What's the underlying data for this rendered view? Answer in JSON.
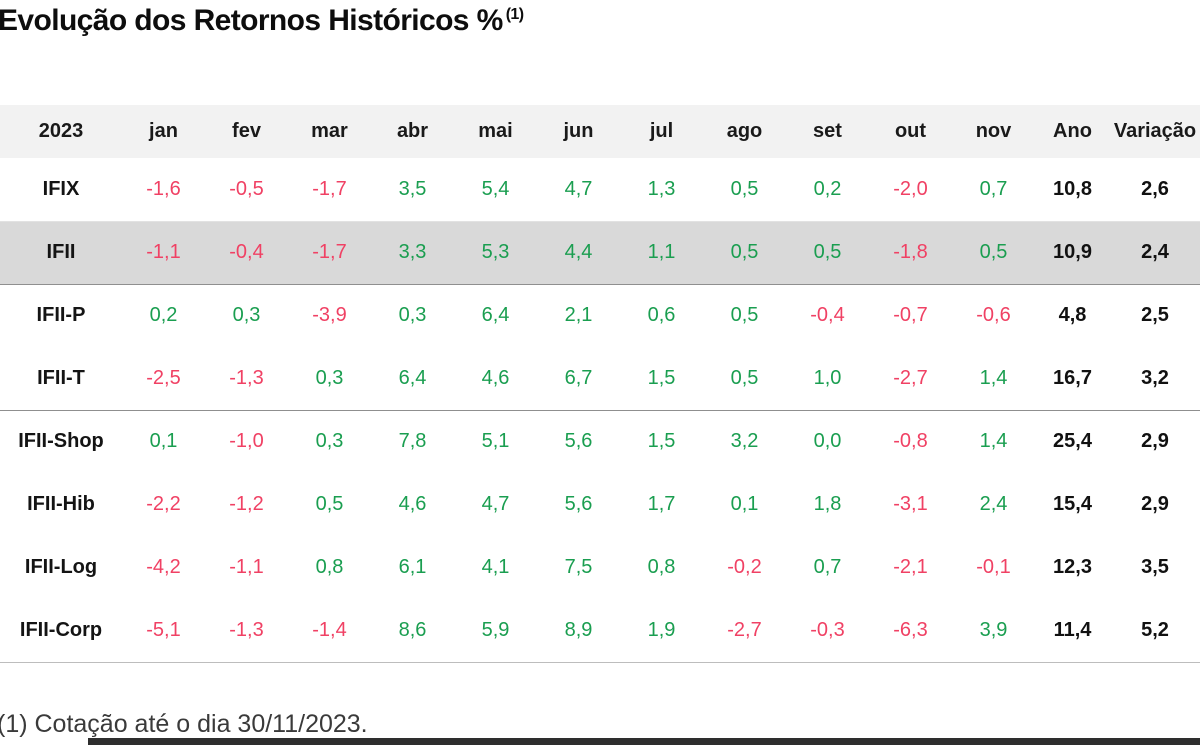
{
  "title": {
    "text": "Evolução dos Retornos Históricos %",
    "superscript": "(1)"
  },
  "footnote": "(1) Cotação até o dia 30/11/2023.",
  "colors": {
    "positive": "#1a9e50",
    "negative": "#f04164",
    "totals": "#111111",
    "header_background": "#f2f2f2",
    "highlight_row_background": "#d9d9d9"
  },
  "table": {
    "header": [
      "2023",
      "jan",
      "fev",
      "mar",
      "abr",
      "mai",
      "jun",
      "jul",
      "ago",
      "set",
      "out",
      "nov",
      "Ano",
      "Variação"
    ],
    "rows": [
      {
        "label": "IFIX",
        "values": [
          "-1,6",
          "-0,5",
          "-1,7",
          "3,5",
          "5,4",
          "4,7",
          "1,3",
          "0,5",
          "0,2",
          "-2,0",
          "0,7"
        ],
        "ano": "10,8",
        "variacao": "2,6",
        "highlight": false,
        "divider": "light"
      },
      {
        "label": "IFII",
        "values": [
          "-1,1",
          "-0,4",
          "-1,7",
          "3,3",
          "5,3",
          "4,4",
          "1,1",
          "0,5",
          "0,5",
          "-1,8",
          "0,5"
        ],
        "ano": "10,9",
        "variacao": "2,4",
        "highlight": true,
        "divider": "dark"
      },
      {
        "label": "IFII-P",
        "values": [
          "0,2",
          "0,3",
          "-3,9",
          "0,3",
          "6,4",
          "2,1",
          "0,6",
          "0,5",
          "-0,4",
          "-0,7",
          "-0,6"
        ],
        "ano": "4,8",
        "variacao": "2,5",
        "highlight": false,
        "divider": null
      },
      {
        "label": "IFII-T",
        "values": [
          "-2,5",
          "-1,3",
          "0,3",
          "6,4",
          "4,6",
          "6,7",
          "1,5",
          "0,5",
          "1,0",
          "-2,7",
          "1,4"
        ],
        "ano": "16,7",
        "variacao": "3,2",
        "highlight": false,
        "divider": "dark"
      },
      {
        "label": "IFII-Shop",
        "values": [
          "0,1",
          "-1,0",
          "0,3",
          "7,8",
          "5,1",
          "5,6",
          "1,5",
          "3,2",
          "0,0",
          "-0,8",
          "1,4"
        ],
        "ano": "25,4",
        "variacao": "2,9",
        "highlight": false,
        "divider": null
      },
      {
        "label": "IFII-Hib",
        "values": [
          "-2,2",
          "-1,2",
          "0,5",
          "4,6",
          "4,7",
          "5,6",
          "1,7",
          "0,1",
          "1,8",
          "-3,1",
          "2,4"
        ],
        "ano": "15,4",
        "variacao": "2,9",
        "highlight": false,
        "divider": null
      },
      {
        "label": "IFII-Log",
        "values": [
          "-4,2",
          "-1,1",
          "0,8",
          "6,1",
          "4,1",
          "7,5",
          "0,8",
          "-0,2",
          "0,7",
          "-2,1",
          "-0,1"
        ],
        "ano": "12,3",
        "variacao": "3,5",
        "highlight": false,
        "divider": null
      },
      {
        "label": "IFII-Corp",
        "values": [
          "-5,1",
          "-1,3",
          "-1,4",
          "8,6",
          "5,9",
          "8,9",
          "1,9",
          "-2,7",
          "-0,3",
          "-6,3",
          "3,9"
        ],
        "ano": "11,4",
        "variacao": "5,2",
        "highlight": false,
        "divider": "mid"
      }
    ]
  },
  "chart_data": {
    "type": "table",
    "title": "Evolução dos Retornos Históricos % (1)",
    "columns": [
      "2023",
      "jan",
      "fev",
      "mar",
      "abr",
      "mai",
      "jun",
      "jul",
      "ago",
      "set",
      "out",
      "nov",
      "Ano",
      "Variação"
    ],
    "rows": [
      {
        "label": "IFIX",
        "monthly": [
          -1.6,
          -0.5,
          -1.7,
          3.5,
          5.4,
          4.7,
          1.3,
          0.5,
          0.2,
          -2.0,
          0.7
        ],
        "ano": 10.8,
        "variacao": 2.6
      },
      {
        "label": "IFII",
        "monthly": [
          -1.1,
          -0.4,
          -1.7,
          3.3,
          5.3,
          4.4,
          1.1,
          0.5,
          0.5,
          -1.8,
          0.5
        ],
        "ano": 10.9,
        "variacao": 2.4
      },
      {
        "label": "IFII-P",
        "monthly": [
          0.2,
          0.3,
          -3.9,
          0.3,
          6.4,
          2.1,
          0.6,
          0.5,
          -0.4,
          -0.7,
          -0.6
        ],
        "ano": 4.8,
        "variacao": 2.5
      },
      {
        "label": "IFII-T",
        "monthly": [
          -2.5,
          -1.3,
          0.3,
          6.4,
          4.6,
          6.7,
          1.5,
          0.5,
          1.0,
          -2.7,
          1.4
        ],
        "ano": 16.7,
        "variacao": 3.2
      },
      {
        "label": "IFII-Shop",
        "monthly": [
          0.1,
          -1.0,
          0.3,
          7.8,
          5.1,
          5.6,
          1.5,
          3.2,
          0.0,
          -0.8,
          1.4
        ],
        "ano": 25.4,
        "variacao": 2.9
      },
      {
        "label": "IFII-Hib",
        "monthly": [
          -2.2,
          -1.2,
          0.5,
          4.6,
          4.7,
          5.6,
          1.7,
          0.1,
          1.8,
          -3.1,
          2.4
        ],
        "ano": 15.4,
        "variacao": 2.9
      },
      {
        "label": "IFII-Log",
        "monthly": [
          -4.2,
          -1.1,
          0.8,
          6.1,
          4.1,
          7.5,
          0.8,
          -0.2,
          0.7,
          -2.1,
          -0.1
        ],
        "ano": 12.3,
        "variacao": 3.5
      },
      {
        "label": "IFII-Corp",
        "monthly": [
          -5.1,
          -1.3,
          -1.4,
          8.6,
          5.9,
          8.9,
          1.9,
          -2.7,
          -0.3,
          -6.3,
          3.9
        ],
        "ano": 11.4,
        "variacao": 5.2
      }
    ],
    "footnote": "(1) Cotação até o dia 30/11/2023.",
    "notes": "Values are percentages, pt-BR comma decimal format; negative values shown in pink (#f04164), positive in green (#1a9e50), Ano/Variação totals in bold black."
  }
}
